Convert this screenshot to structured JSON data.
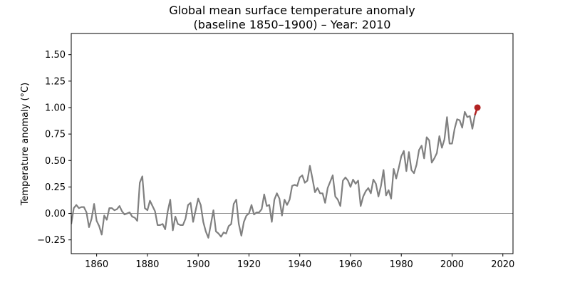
{
  "chart_data": {
    "type": "line",
    "title_line1": "Global mean surface temperature anomaly",
    "title_line2": "(baseline 1850–1900) – Year: 2010",
    "xlabel": "",
    "ylabel": "Temperature anomaly (°C)",
    "xlim": [
      1850,
      2024
    ],
    "ylim": [
      -0.38,
      1.7
    ],
    "xticks": [
      1860,
      1880,
      1900,
      1920,
      1940,
      1960,
      1980,
      2000,
      2020
    ],
    "yticks": [
      -0.25,
      0.0,
      0.25,
      0.5,
      0.75,
      1.0,
      1.25,
      1.5
    ],
    "ytick_labels": [
      "−0.25",
      "0.00",
      "0.25",
      "0.50",
      "0.75",
      "1.00",
      "1.25",
      "1.50"
    ],
    "grid": false,
    "zero_line": true,
    "colors": {
      "history": "#808080",
      "current": "#b22222",
      "zero_line": "#808080"
    },
    "series": [
      {
        "x": [
          1850,
          1851,
          1852,
          1853,
          1854,
          1855,
          1856,
          1857,
          1858,
          1859,
          1860,
          1861,
          1862,
          1863,
          1864,
          1865,
          1866,
          1867,
          1868,
          1869,
          1870,
          1871,
          1872,
          1873,
          1874,
          1875,
          1876,
          1877,
          1878,
          1879,
          1880,
          1881,
          1882,
          1883,
          1884,
          1885,
          1886,
          1887,
          1888,
          1889,
          1890,
          1891,
          1892,
          1893,
          1894,
          1895,
          1896,
          1897,
          1898,
          1899,
          1900,
          1901,
          1902,
          1903,
          1904,
          1905,
          1906,
          1907,
          1908,
          1909,
          1910,
          1911,
          1912,
          1913,
          1914,
          1915,
          1916,
          1917,
          1918,
          1919,
          1920,
          1921,
          1922,
          1923,
          1924,
          1925,
          1926,
          1927,
          1928,
          1929,
          1930,
          1931,
          1932,
          1933,
          1934,
          1935,
          1936,
          1937,
          1938,
          1939,
          1940,
          1941,
          1942,
          1943,
          1944,
          1945,
          1946,
          1947,
          1948,
          1949,
          1950,
          1951,
          1952,
          1953,
          1954,
          1955,
          1956,
          1957,
          1958,
          1959,
          1960,
          1961,
          1962,
          1963,
          1964,
          1965,
          1966,
          1967,
          1968,
          1969,
          1970,
          1971,
          1972,
          1973,
          1974,
          1975,
          1976,
          1977,
          1978,
          1979,
          1980,
          1981,
          1982,
          1983,
          1984,
          1985,
          1986,
          1987,
          1988,
          1989,
          1990,
          1991,
          1992,
          1993,
          1994,
          1995,
          1996,
          1997,
          1998,
          1999,
          2000,
          2001,
          2002,
          2003,
          2004,
          2005,
          2006,
          2007,
          2008,
          2009,
          2010
        ],
        "y": [
          -0.1,
          0.05,
          0.08,
          0.05,
          0.06,
          0.06,
          0.01,
          -0.13,
          -0.05,
          0.09,
          -0.07,
          -0.12,
          -0.2,
          -0.02,
          -0.06,
          0.05,
          0.05,
          0.03,
          0.04,
          0.07,
          0.02,
          -0.01,
          0.0,
          0.01,
          -0.03,
          -0.04,
          -0.07,
          0.29,
          0.35,
          0.05,
          0.03,
          0.12,
          0.07,
          0.02,
          -0.11,
          -0.11,
          -0.1,
          -0.15,
          0.02,
          0.13,
          -0.16,
          -0.03,
          -0.1,
          -0.11,
          -0.11,
          -0.05,
          0.08,
          0.1,
          -0.08,
          0.03,
          0.14,
          0.08,
          -0.08,
          -0.17,
          -0.23,
          -0.1,
          0.03,
          -0.17,
          -0.19,
          -0.22,
          -0.18,
          -0.19,
          -0.12,
          -0.1,
          0.09,
          0.13,
          -0.1,
          -0.21,
          -0.08,
          -0.02,
          0.0,
          0.08,
          -0.01,
          0.01,
          0.01,
          0.04,
          0.18,
          0.07,
          0.08,
          -0.08,
          0.13,
          0.19,
          0.14,
          -0.02,
          0.13,
          0.08,
          0.13,
          0.26,
          0.27,
          0.26,
          0.34,
          0.36,
          0.29,
          0.31,
          0.45,
          0.33,
          0.2,
          0.24,
          0.19,
          0.19,
          0.1,
          0.24,
          0.3,
          0.36,
          0.16,
          0.13,
          0.07,
          0.31,
          0.34,
          0.31,
          0.25,
          0.32,
          0.28,
          0.31,
          0.07,
          0.16,
          0.21,
          0.24,
          0.19,
          0.32,
          0.28,
          0.16,
          0.26,
          0.41,
          0.17,
          0.22,
          0.14,
          0.42,
          0.33,
          0.43,
          0.54,
          0.59,
          0.4,
          0.58,
          0.41,
          0.38,
          0.46,
          0.6,
          0.64,
          0.52,
          0.72,
          0.69,
          0.48,
          0.52,
          0.57,
          0.73,
          0.62,
          0.7,
          0.91,
          0.66,
          0.66,
          0.8,
          0.89,
          0.88,
          0.81,
          0.96,
          0.91,
          0.92,
          0.8,
          0.93,
          1.0
        ]
      }
    ],
    "current_point": {
      "x": 2010,
      "y": 1.0
    }
  }
}
